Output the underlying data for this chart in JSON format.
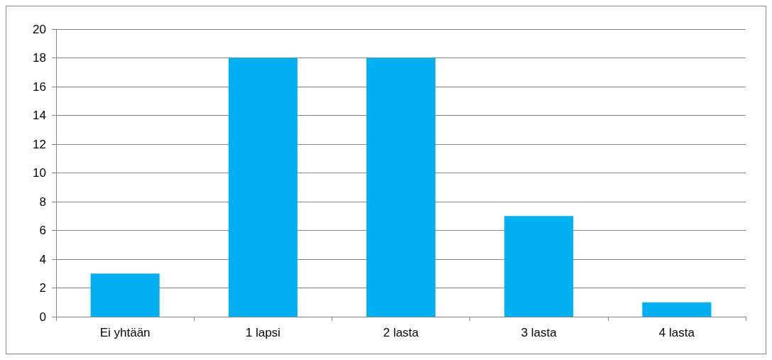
{
  "chart_data": {
    "type": "bar",
    "categories": [
      "Ei yhtään",
      "1 lapsi",
      "2 lasta",
      "3 lasta",
      "4 lasta"
    ],
    "values": [
      3,
      18,
      18,
      7,
      1
    ],
    "color": "#00b0f0",
    "ylim": [
      0,
      20
    ],
    "yticks": [
      0,
      2,
      4,
      6,
      8,
      10,
      12,
      14,
      16,
      18,
      20
    ],
    "grid": "y"
  }
}
